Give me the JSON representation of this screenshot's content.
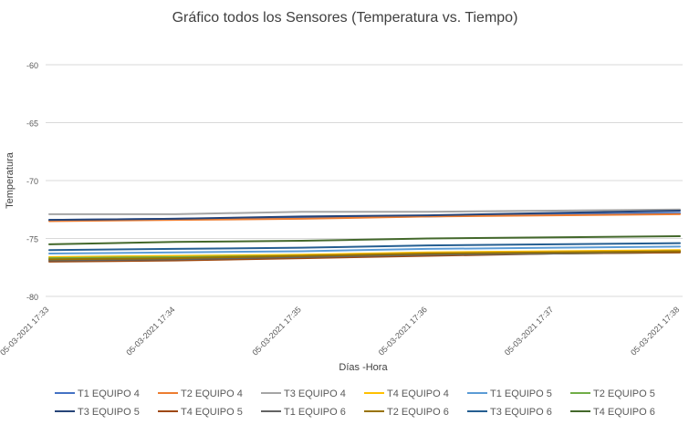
{
  "chart_data": {
    "type": "line",
    "title": "Gráfico todos los Sensores (Temperatura vs. Tiempo)",
    "xlabel": "Días -Hora",
    "ylabel": "Temperatura",
    "categories": [
      "05-03-2021 17:33",
      "05-03-2021 17:34",
      "05-03-2021 17:35",
      "05-03-2021 17:36",
      "05-03-2021 17:37",
      "05-03-2021 17:38"
    ],
    "ylim": [
      -80,
      -58
    ],
    "yticks": [
      -60,
      -65,
      -70,
      -75,
      -80
    ],
    "grid": true,
    "legend_position": "bottom",
    "series": [
      {
        "name": "T1 EQUIPO 4",
        "color": "#4472c4",
        "values": [
          -73.4,
          -73.3,
          -73.2,
          -73.1,
          -72.9,
          -72.8
        ]
      },
      {
        "name": "T2 EQUIPO 4",
        "color": "#ed7d31",
        "values": [
          -73.5,
          -73.4,
          -73.3,
          -73.1,
          -73.0,
          -72.9
        ]
      },
      {
        "name": "T3 EQUIPO 4",
        "color": "#a5a5a5",
        "values": [
          -72.9,
          -72.9,
          -72.7,
          -72.7,
          -72.6,
          -72.5
        ]
      },
      {
        "name": "T4 EQUIPO 4",
        "color": "#ffc000",
        "values": [
          -76.6,
          -76.5,
          -76.4,
          -76.2,
          -76.1,
          -76.0
        ]
      },
      {
        "name": "T1 EQUIPO 5",
        "color": "#5b9bd5",
        "values": [
          -76.3,
          -76.2,
          -76.1,
          -75.9,
          -75.8,
          -75.7
        ]
      },
      {
        "name": "T2 EQUIPO 5",
        "color": "#70ad47",
        "values": [
          -76.7,
          -76.6,
          -76.5,
          -76.4,
          -76.3,
          -76.2
        ]
      },
      {
        "name": "T3 EQUIPO 5",
        "color": "#264478",
        "values": [
          -73.4,
          -73.3,
          -73.1,
          -73.0,
          -72.8,
          -72.6
        ]
      },
      {
        "name": "T4 EQUIPO 5",
        "color": "#9e480e",
        "values": [
          -77.0,
          -76.9,
          -76.7,
          -76.5,
          -76.3,
          -76.2
        ]
      },
      {
        "name": "T1 EQUIPO 6",
        "color": "#636363",
        "values": [
          -76.9,
          -76.8,
          -76.6,
          -76.4,
          -76.3,
          -76.1
        ]
      },
      {
        "name": "T2 EQUIPO 6",
        "color": "#997300",
        "values": [
          -76.8,
          -76.7,
          -76.5,
          -76.3,
          -76.2,
          -76.1
        ]
      },
      {
        "name": "T3 EQUIPO 6",
        "color": "#255e91",
        "values": [
          -76.0,
          -75.9,
          -75.8,
          -75.6,
          -75.5,
          -75.4
        ]
      },
      {
        "name": "T4 EQUIPO 6",
        "color": "#43682b",
        "values": [
          -75.5,
          -75.3,
          -75.2,
          -75.0,
          -74.9,
          -74.8
        ]
      }
    ]
  }
}
